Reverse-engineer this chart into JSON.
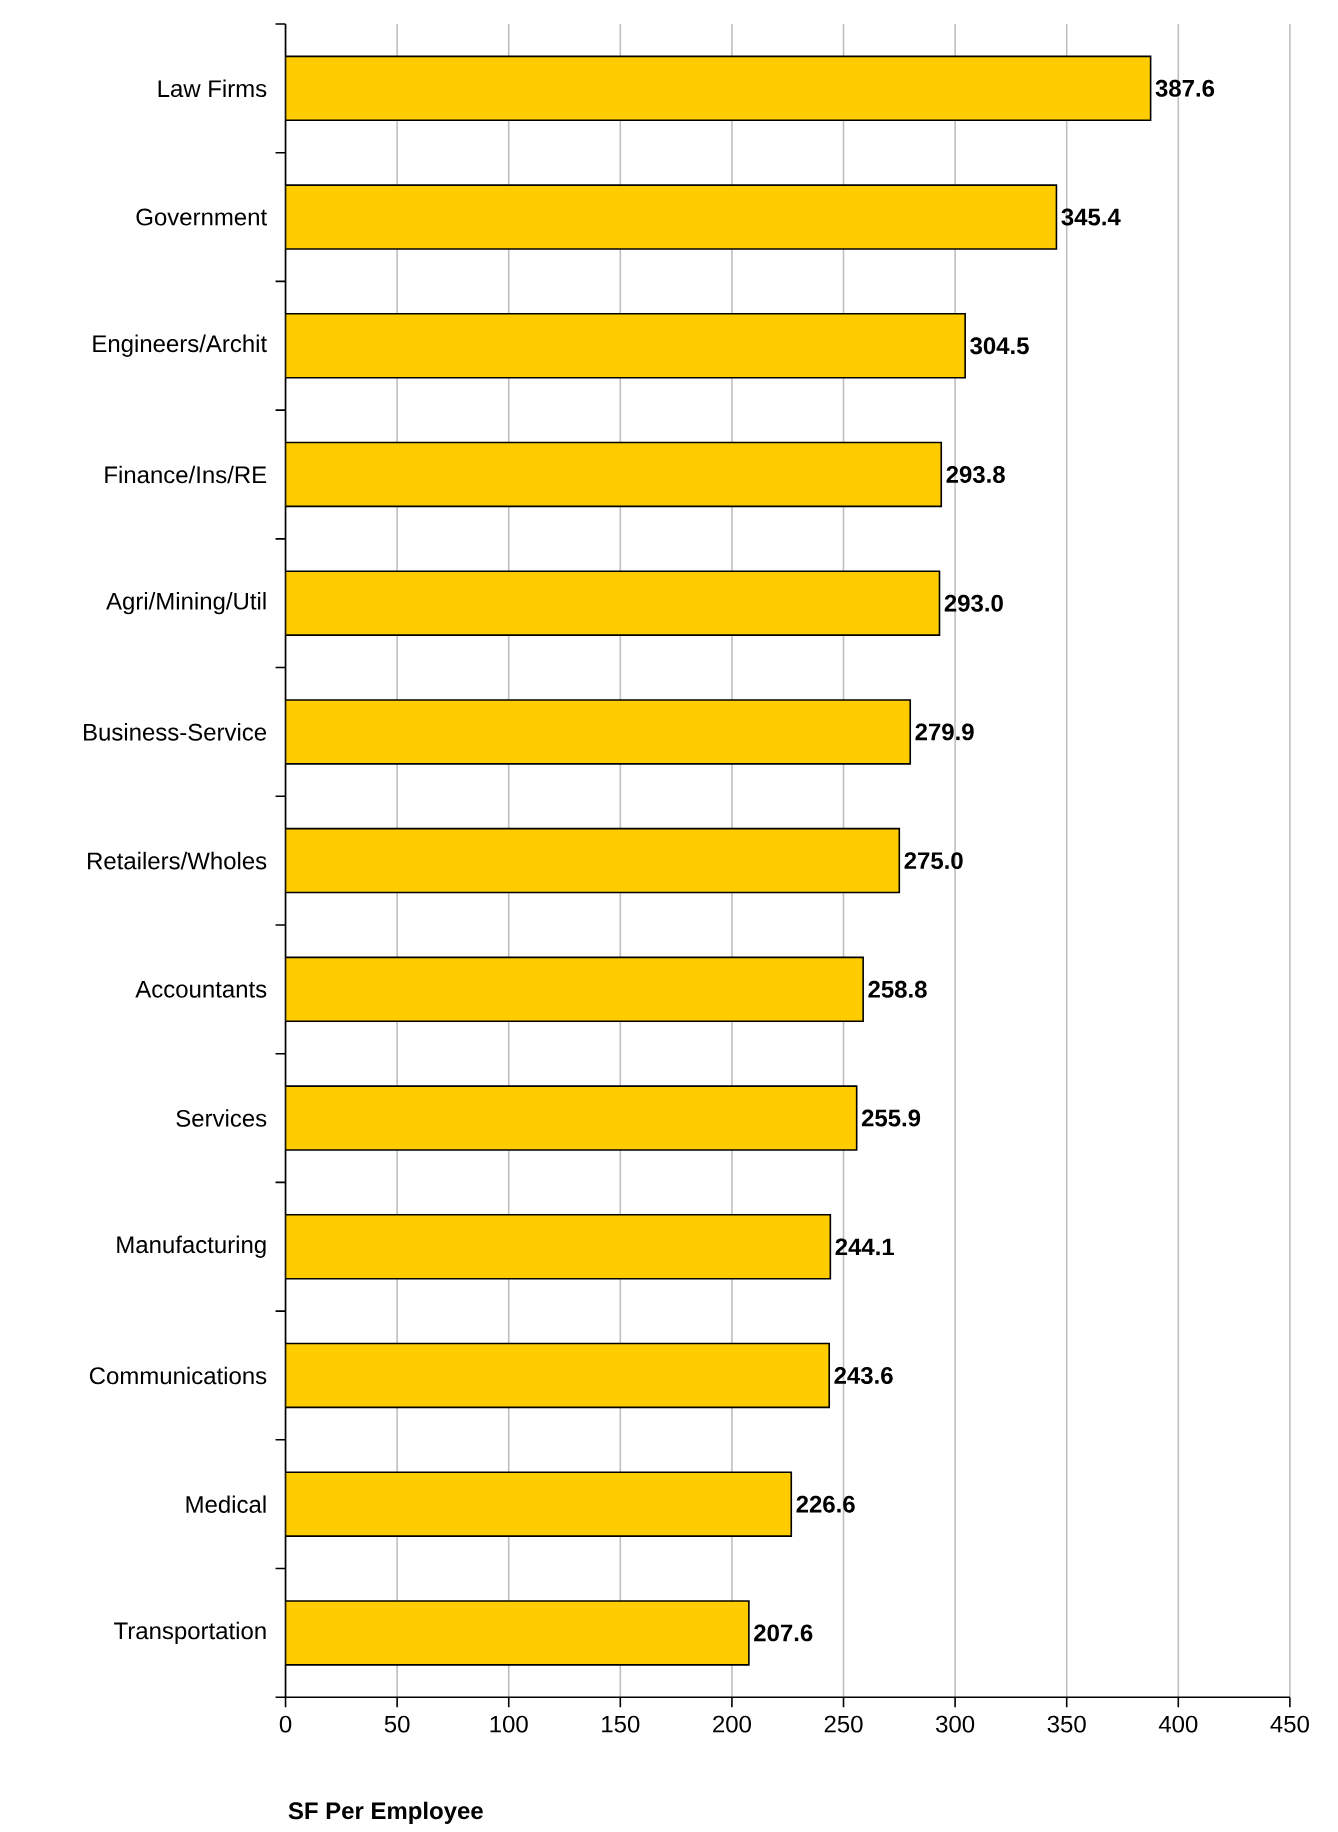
{
  "chart_data": {
    "type": "bar",
    "orientation": "horizontal",
    "categories": [
      "Law Firms",
      "Government",
      "Engineers/Archit",
      "Finance/Ins/RE",
      "Agri/Mining/Util",
      "Business-Service",
      "Retailers/Wholes",
      "Accountants",
      "Services",
      "Manufacturing",
      "Communications",
      "Medical",
      "Transportation"
    ],
    "values": [
      387.6,
      345.4,
      304.5,
      293.8,
      293.0,
      279.9,
      275.0,
      258.8,
      255.9,
      244.1,
      243.6,
      226.6,
      207.6
    ],
    "value_labels": [
      "387.6",
      "345.4",
      "304.5",
      "293.8",
      "293.0",
      "279.9",
      "275.0",
      "258.8",
      "255.9",
      "244.1",
      "243.6",
      "226.6",
      "207.6"
    ],
    "color": "#ffcc00",
    "xlabel": "SF Per Employee",
    "xlim": [
      0,
      450
    ],
    "xticks": [
      0,
      50,
      100,
      150,
      200,
      250,
      300,
      350,
      400,
      450
    ],
    "grid": "x"
  }
}
